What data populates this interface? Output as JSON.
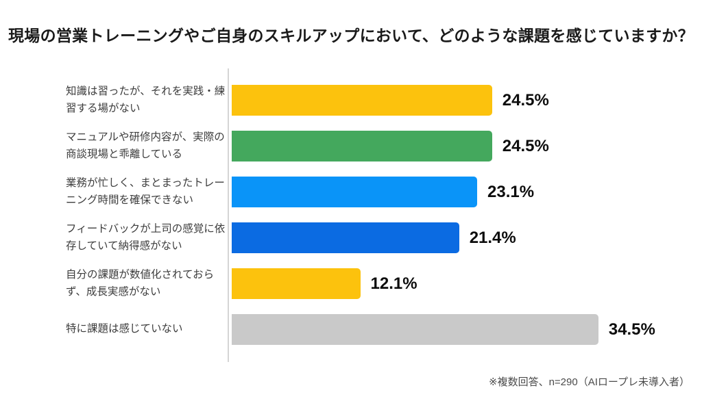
{
  "chart_data": {
    "type": "bar",
    "orientation": "horizontal",
    "title": "現場の営業トレーニングやご自身のスキルアップにおいて、どのような課題を感じていますか？",
    "footnote": "※複数回答、n=290（AIロープレ未導入者）",
    "xlim": [
      0,
      40
    ],
    "grid": false,
    "legend": false,
    "axis_line_color": "#d5d5d5",
    "categories": [
      "知識は習ったが、それを実践・練習する場がない",
      "マニュアルや研修内容が、実際の商談現場と乖離している",
      "業務が忙しく、まとまったトレーニング時間を確保できない",
      "フィードバックが上司の感覚に依存していて納得感がない",
      "自分の課題が数値化されておらず、成長実感がない",
      "特に課題は感じていない"
    ],
    "values": [
      24.5,
      24.5,
      23.1,
      21.4,
      12.1,
      34.5
    ],
    "value_labels": [
      "24.5%",
      "24.5%",
      "23.1%",
      "21.4%",
      "12.1%",
      "34.5%"
    ],
    "colors": [
      "#fcc20d",
      "#44a85d",
      "#0a94f8",
      "#0b6be2",
      "#fcc20d",
      "#c9c9c9"
    ]
  }
}
